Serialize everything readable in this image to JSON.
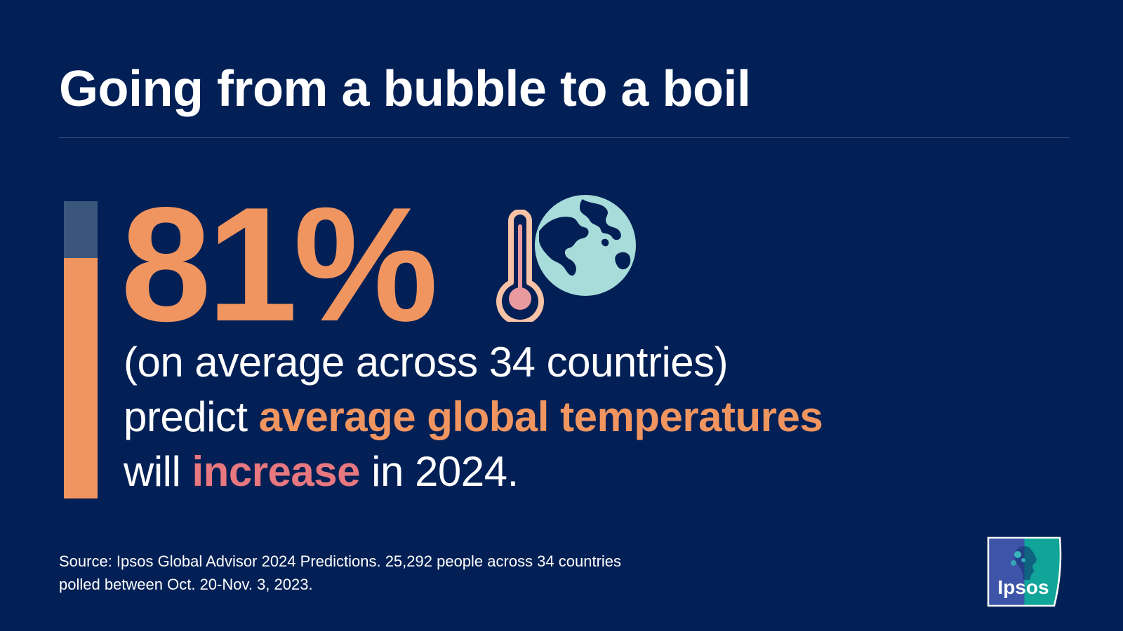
{
  "header": {
    "title": "Going from a bubble to a boil"
  },
  "stat": {
    "value": "81%",
    "fill_fraction": 0.81
  },
  "statement": {
    "line1": "(on average across 34 countries)",
    "line2_pre": "predict ",
    "line2_highlight": "average global temperatures",
    "line3_pre": "will ",
    "line3_highlight": "increase",
    "line3_post": " in 2024."
  },
  "source": {
    "line1": "Source: Ipsos Global Advisor 2024 Predictions. 25,292 people across 34 countries",
    "line2": "polled between Oct. 20-Nov. 3, 2023."
  },
  "logo": {
    "text": "Ipsos"
  },
  "icons": {
    "thermometer": "thermometer-icon",
    "globe": "globe-icon"
  },
  "colors": {
    "background": "#022055",
    "accent_orange": "#f19560",
    "accent_pink": "#e8787f",
    "globe": "#a8dcda",
    "bar_empty": "#3a567d"
  }
}
